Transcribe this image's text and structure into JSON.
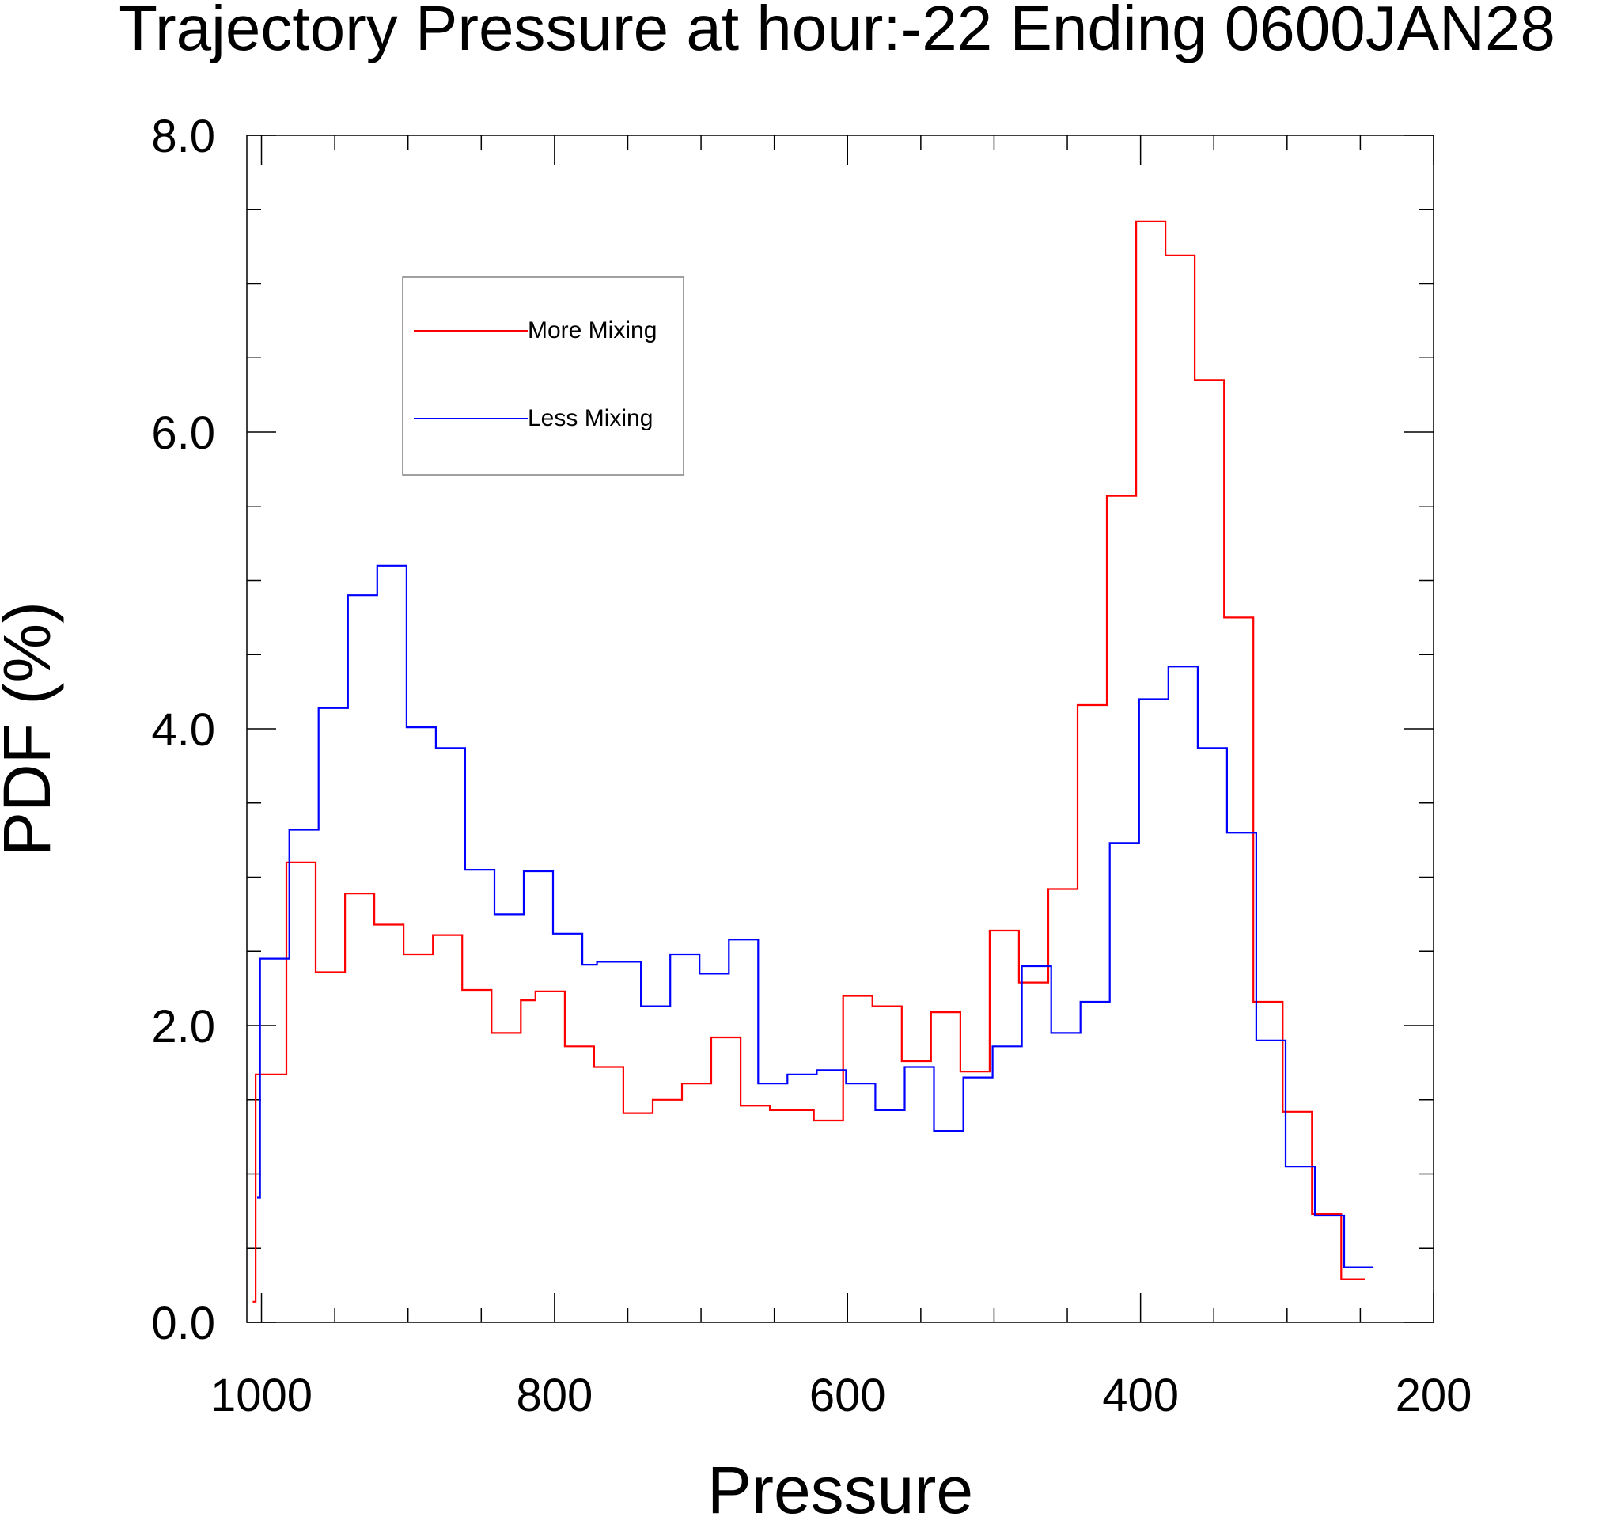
{
  "chart_data": {
    "type": "line",
    "step": true,
    "title": "Trajectory Pressure at hour:-22 Ending 0600JAN28",
    "xlabel": "Pressure",
    "ylabel": "PDF (%)",
    "xlim": [
      1010,
      200
    ],
    "ylim": [
      0,
      8
    ],
    "x_reversed": true,
    "x_ticks": [
      "1000",
      "800",
      "600",
      "400",
      "200"
    ],
    "y_ticks": [
      "0.0",
      "2.0",
      "4.0",
      "6.0",
      "8.0"
    ],
    "legend_position": "top-left",
    "series": [
      {
        "name": "More Mixing",
        "color": "#ff0000",
        "steps": [
          [
            1006,
            0.14
          ],
          [
            1004,
            1.67
          ],
          [
            983,
            3.1
          ],
          [
            963,
            2.36
          ],
          [
            943,
            2.89
          ],
          [
            923,
            2.68
          ],
          [
            903,
            2.48
          ],
          [
            883,
            2.61
          ],
          [
            863,
            2.24
          ],
          [
            843,
            1.95
          ],
          [
            823,
            2.17
          ],
          [
            813,
            2.23
          ],
          [
            793,
            1.86
          ],
          [
            773,
            1.72
          ],
          [
            753,
            1.41
          ],
          [
            733,
            1.5
          ],
          [
            713,
            1.61
          ],
          [
            693,
            1.92
          ],
          [
            673,
            1.46
          ],
          [
            653,
            1.43
          ],
          [
            623,
            1.36
          ],
          [
            603,
            2.2
          ],
          [
            583,
            2.13
          ],
          [
            563,
            1.76
          ],
          [
            543,
            2.09
          ],
          [
            523,
            1.69
          ],
          [
            503,
            2.64
          ],
          [
            483,
            2.29
          ],
          [
            463,
            2.92
          ],
          [
            443,
            4.16
          ],
          [
            423,
            5.57
          ],
          [
            403,
            7.42
          ],
          [
            383,
            7.19
          ],
          [
            363,
            6.35
          ],
          [
            343,
            4.75
          ],
          [
            323,
            2.16
          ],
          [
            303,
            1.42
          ],
          [
            283,
            0.73
          ],
          [
            263,
            0.29
          ]
        ],
        "x_end": 247
      },
      {
        "name": "Less Mixing",
        "color": "#0000ff",
        "steps": [
          [
            1003,
            0.84
          ],
          [
            1001,
            2.45
          ],
          [
            981,
            3.32
          ],
          [
            961,
            4.14
          ],
          [
            941,
            4.9
          ],
          [
            921,
            5.1
          ],
          [
            901,
            4.01
          ],
          [
            881,
            3.87
          ],
          [
            861,
            3.05
          ],
          [
            841,
            2.75
          ],
          [
            821,
            3.04
          ],
          [
            801,
            2.62
          ],
          [
            781,
            2.41
          ],
          [
            771,
            2.43
          ],
          [
            761,
            2.43
          ],
          [
            741,
            2.13
          ],
          [
            721,
            2.48
          ],
          [
            701,
            2.35
          ],
          [
            681,
            2.58
          ],
          [
            661,
            1.61
          ],
          [
            641,
            1.67
          ],
          [
            621,
            1.7
          ],
          [
            601,
            1.61
          ],
          [
            581,
            1.43
          ],
          [
            561,
            1.72
          ],
          [
            541,
            1.29
          ],
          [
            521,
            1.65
          ],
          [
            501,
            1.86
          ],
          [
            481,
            2.4
          ],
          [
            461,
            1.95
          ],
          [
            441,
            2.16
          ],
          [
            421,
            3.23
          ],
          [
            401,
            4.2
          ],
          [
            381,
            4.42
          ],
          [
            361,
            3.87
          ],
          [
            341,
            3.3
          ],
          [
            321,
            1.9
          ],
          [
            301,
            1.05
          ],
          [
            281,
            0.72
          ],
          [
            261,
            0.37
          ]
        ],
        "x_end": 241
      }
    ]
  }
}
